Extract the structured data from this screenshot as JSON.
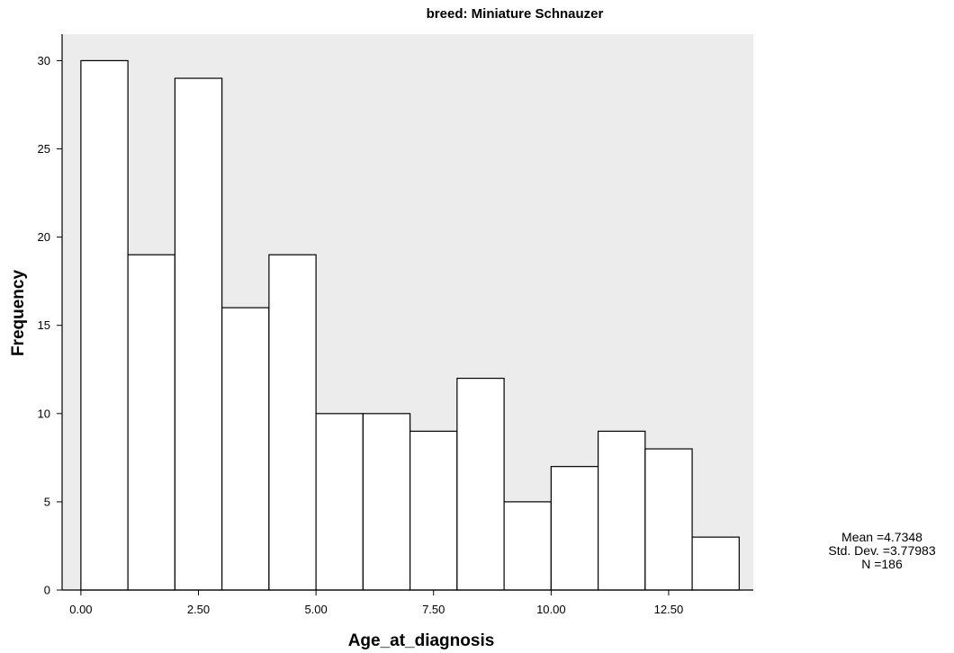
{
  "chart_data": {
    "type": "bar",
    "title": "breed: Miniature Schnauzer",
    "xlabel": "Age_at_diagnosis",
    "ylabel": "Frequency",
    "bin_width": 1,
    "bin_starts": [
      0,
      1,
      2,
      3,
      4,
      5,
      6,
      7,
      8,
      9,
      10,
      11,
      12,
      13
    ],
    "values": [
      30,
      19,
      29,
      16,
      19,
      10,
      10,
      9,
      12,
      5,
      7,
      9,
      8,
      3
    ],
    "xlim": [
      -0.4,
      14.3
    ],
    "ylim": [
      0,
      31.5
    ],
    "x_ticks": [
      0,
      2.5,
      5,
      7.5,
      10,
      12.5
    ],
    "x_tick_labels": [
      "0.00",
      "2.50",
      "5.00",
      "7.50",
      "10.00",
      "12.50"
    ],
    "y_ticks": [
      0,
      5,
      10,
      15,
      20,
      25,
      30
    ],
    "y_tick_labels": [
      "0",
      "5",
      "10",
      "15",
      "20",
      "25",
      "30"
    ],
    "plot_background": "#ececec",
    "bar_fill": "#ffffff",
    "bar_stroke": "#000000",
    "grid": false
  },
  "stats": {
    "mean": "Mean =4.7348",
    "std_dev": "Std. Dev. =3.77983",
    "n": "N =186"
  }
}
